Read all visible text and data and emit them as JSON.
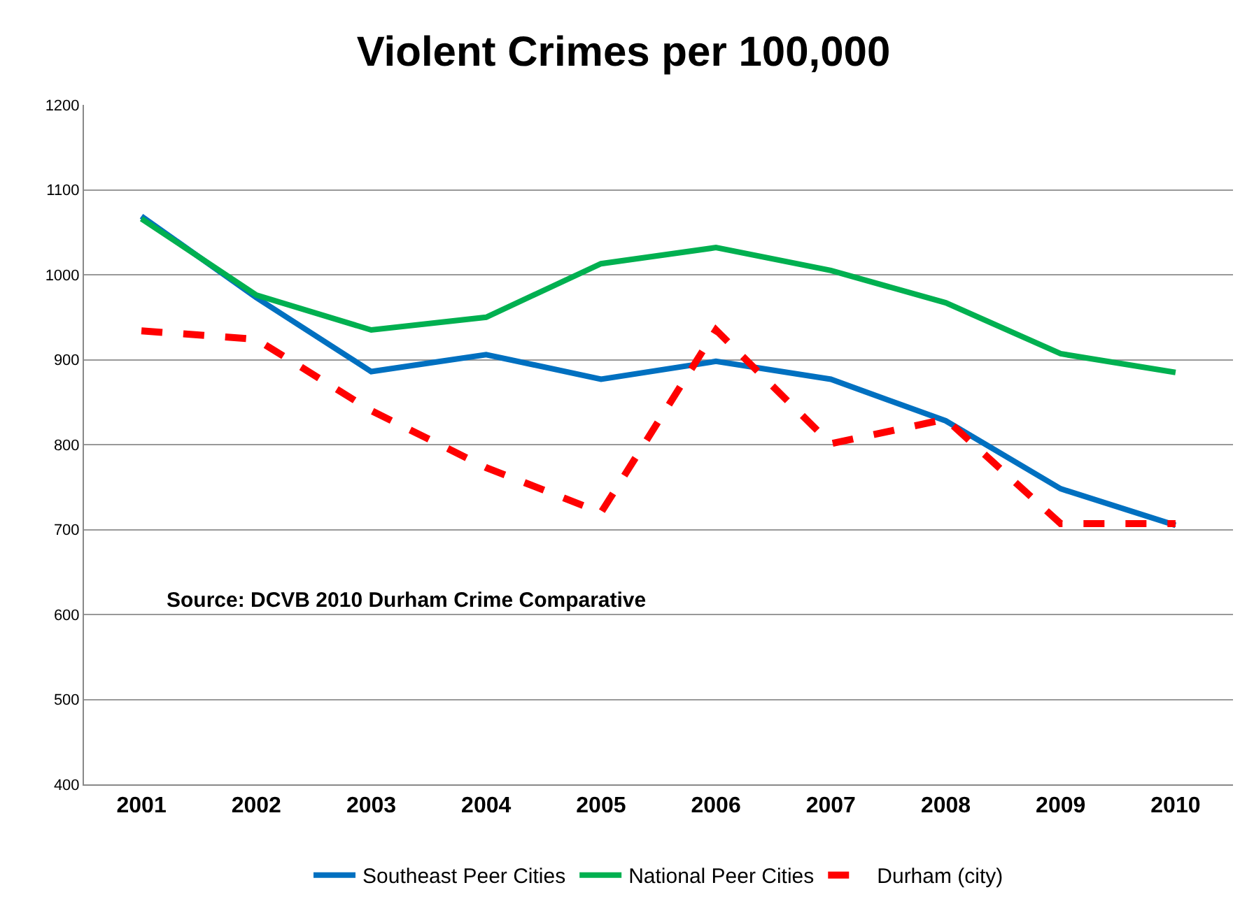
{
  "chart_data": {
    "type": "line",
    "title": "Violent Crimes per 100,000",
    "categories": [
      "2001",
      "2002",
      "2003",
      "2004",
      "2005",
      "2006",
      "2007",
      "2008",
      "2009",
      "2010"
    ],
    "series": [
      {
        "name": "Southeast Peer Cities",
        "color": "#0070c0",
        "values": [
          1069,
          973,
          886,
          906,
          877,
          898,
          877,
          828,
          748,
          705
        ]
      },
      {
        "name": "National Peer Cities",
        "color": "#00b050",
        "values": [
          1066,
          976,
          935,
          950,
          1013,
          1032,
          1005,
          967,
          907,
          885
        ]
      },
      {
        "name": "Durham (city)",
        "color": "#ff0000",
        "line_style": "dashed",
        "values": [
          934,
          924,
          840,
          773,
          720,
          935,
          801,
          830,
          707,
          707
        ]
      }
    ],
    "ylim": [
      400,
      1200
    ],
    "yticks": [
      400,
      500,
      600,
      700,
      800,
      900,
      1000,
      1100,
      1200
    ],
    "grid": "y",
    "legend": "bottom",
    "marker": "none",
    "line_style": "solid",
    "annotations": [
      "Source: DCVB 2010 Durham Crime Comparative"
    ]
  }
}
